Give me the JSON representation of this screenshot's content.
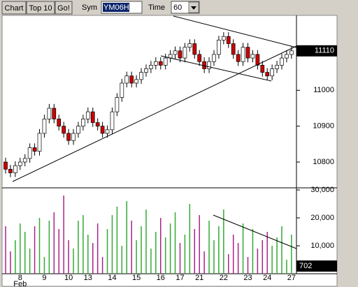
{
  "toolbar": {
    "chart_button": "Chart",
    "top_button": "Top 10",
    "go_button": "Go!",
    "sym_label": "Sym",
    "sym_value": "YM06H",
    "time_label": "Time",
    "time_value": "60"
  },
  "chart_data": [
    {
      "type": "candlestick",
      "categories": [
        null,
        null,
        null,
        "8",
        null,
        null,
        null,
        null,
        "9",
        null,
        null,
        null,
        null,
        "10",
        null,
        null,
        null,
        "13",
        null,
        null,
        null,
        null,
        "14",
        null,
        null,
        null,
        null,
        "15",
        null,
        null,
        null,
        null,
        "16",
        null,
        null,
        null,
        "17",
        null,
        null,
        null,
        "21",
        null,
        null,
        null,
        null,
        "22",
        null,
        null,
        null,
        null,
        "23",
        null,
        null,
        null,
        "24",
        null,
        null,
        null,
        null,
        "27"
      ],
      "month_label": "Feb",
      "open": [
        10800,
        10780,
        10770,
        10790,
        10800,
        10810,
        10840,
        10830,
        10880,
        10920,
        10950,
        10920,
        10900,
        10880,
        10860,
        10880,
        10900,
        10920,
        10940,
        10910,
        10900,
        10880,
        10890,
        10940,
        10980,
        11020,
        11040,
        11020,
        11030,
        11050,
        11060,
        11070,
        11080,
        11070,
        11090,
        11100,
        11110,
        11090,
        11120,
        11130,
        11100,
        11080,
        11060,
        11080,
        11100,
        11140,
        11150,
        11130,
        11100,
        11080,
        11120,
        11090,
        11100,
        11070,
        11050,
        11040,
        11060,
        11070,
        11090,
        11100
      ],
      "high": [
        10812,
        10792,
        10802,
        10812,
        10822,
        10852,
        10852,
        10892,
        10932,
        10962,
        10962,
        10932,
        10912,
        10892,
        10892,
        10912,
        10932,
        10952,
        10952,
        10922,
        10912,
        10902,
        10952,
        10992,
        11032,
        11052,
        11052,
        11042,
        11062,
        11072,
        11082,
        11092,
        11092,
        11102,
        11112,
        11122,
        11122,
        11132,
        11142,
        11142,
        11112,
        11092,
        11092,
        11112,
        11152,
        11162,
        11162,
        11142,
        11112,
        11132,
        11132,
        11112,
        11112,
        11082,
        11062,
        11072,
        11082,
        11102,
        11112,
        11122
      ],
      "low": [
        10768,
        10758,
        10758,
        10778,
        10788,
        10798,
        10818,
        10818,
        10868,
        10908,
        10908,
        10888,
        10868,
        10848,
        10848,
        10868,
        10888,
        10908,
        10898,
        10888,
        10868,
        10868,
        10878,
        10928,
        10968,
        11008,
        11008,
        11008,
        11018,
        11038,
        11048,
        11058,
        11058,
        11058,
        11078,
        11088,
        11078,
        11078,
        11108,
        11088,
        11068,
        11048,
        11048,
        11068,
        11088,
        11128,
        11118,
        11088,
        11068,
        11068,
        11078,
        11078,
        11058,
        11038,
        11028,
        11028,
        11048,
        11058,
        11078,
        11088
      ],
      "close": [
        10780,
        10770,
        10790,
        10800,
        10810,
        10840,
        10830,
        10880,
        10920,
        10950,
        10920,
        10900,
        10880,
        10860,
        10880,
        10900,
        10920,
        10940,
        10910,
        10900,
        10880,
        10890,
        10940,
        10980,
        11020,
        11040,
        11020,
        11030,
        11050,
        11060,
        11070,
        11080,
        11070,
        11090,
        11100,
        11110,
        11090,
        11120,
        11130,
        11100,
        11080,
        11060,
        11080,
        11100,
        11140,
        11150,
        11130,
        11100,
        11080,
        11120,
        11090,
        11100,
        11070,
        11050,
        11040,
        11060,
        11070,
        11090,
        11100,
        11110
      ],
      "up_color": "#ffffff",
      "down_color": "#cc0000",
      "ylim": [
        10730,
        11205
      ],
      "yticks": [
        10800,
        10900,
        11000
      ],
      "last_price": 11110
    },
    {
      "type": "bar",
      "values": [
        17000,
        8000,
        12000,
        18000,
        15000,
        9000,
        17000,
        20000,
        6000,
        19000,
        22000,
        16000,
        28000,
        12000,
        9000,
        19000,
        21000,
        14000,
        11000,
        18000,
        6000,
        16000,
        21000,
        24000,
        10000,
        26000,
        19000,
        12000,
        17000,
        23000,
        9000,
        15000,
        20000,
        13000,
        18000,
        22000,
        11000,
        14000,
        25000,
        16000,
        21000,
        8000,
        19000,
        12000,
        17000,
        23000,
        7000,
        14000,
        11000,
        18000,
        6000,
        16000,
        9000,
        12000,
        15000,
        10000,
        13000,
        17000,
        5000,
        14000
      ],
      "up_color": "#33aa33",
      "down_color": "#aa2288",
      "ylim": [
        0,
        30500
      ],
      "yticks": [
        {
          "value": 10000,
          "label": "10,000"
        },
        {
          "value": 20000,
          "label": "20,000"
        },
        {
          "value": 30000,
          "label": "30,000"
        }
      ],
      "last_volume": 702
    }
  ]
}
